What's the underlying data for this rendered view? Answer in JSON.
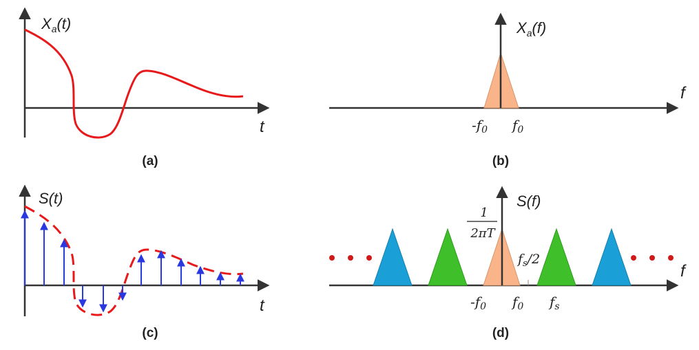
{
  "panels": {
    "a": {
      "caption": "(a)",
      "y_label_main": "X",
      "y_label_sub": "a",
      "y_label_arg": "(t)",
      "x_label": "t",
      "signal_desc": "continuous-time analog signal",
      "color": "#e8191b"
    },
    "b": {
      "caption": "(b)",
      "y_label_main": "X",
      "y_label_sub": "a",
      "y_label_arg": "(f)",
      "x_label": "f",
      "tick_left": "-f",
      "tick_left_sub": "0",
      "tick_right": "f",
      "tick_right_sub": "0",
      "spectrum_color": "#f9b48a"
    },
    "c": {
      "caption": "(c)",
      "y_label": "S(t)",
      "x_label": "t",
      "envelope_color": "#e8191b",
      "sample_color": "#2a38e0"
    },
    "d": {
      "caption": "(d)",
      "y_label": "S(f)",
      "x_label": "f",
      "amp_num": "1",
      "amp_den": "2πT",
      "tick_left": "-f",
      "tick_left_sub": "0",
      "tick_right": "f",
      "tick_right_sub": "0",
      "tick_fs": "f",
      "tick_fs_sub": "s",
      "half_fs": "f",
      "half_fs_sub": "s",
      "half_fs_suffix": "/2",
      "colors": {
        "baseband": "#f9b48a",
        "first_image": "#3fbf2a",
        "second_image": "#1a9fd6",
        "dots": "#d01a1a"
      }
    }
  }
}
